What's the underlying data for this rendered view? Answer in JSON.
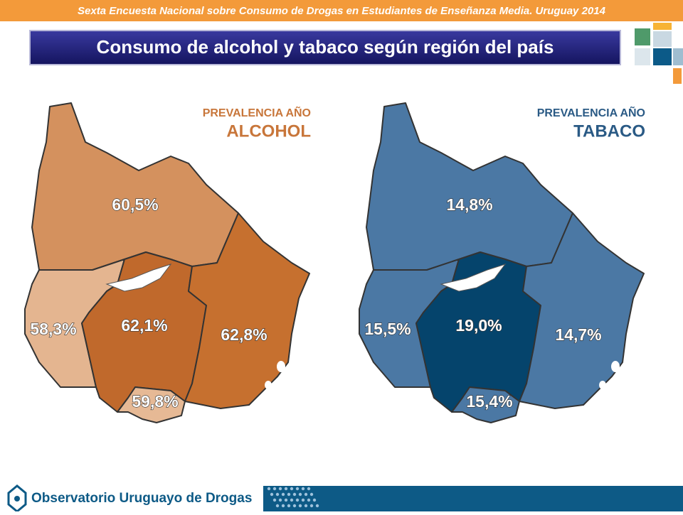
{
  "header": {
    "banner": "Sexta Encuesta Nacional sobre Consumo de Drogas en Estudiantes de Enseñanza Media. Uruguay 2014",
    "title": "Consumo de alcohol y tabaco según región del país"
  },
  "maps": [
    {
      "heading_line1": "PREVALENCIA AÑO",
      "heading_line2": "ALCOHOL",
      "heading_color": "#c8763a",
      "regions": [
        {
          "name": "norte",
          "label": "60,5%",
          "color": "#d4915e"
        },
        {
          "name": "oeste",
          "label": "58,3%",
          "color": "#e4b590"
        },
        {
          "name": "centro",
          "label": "62,1%",
          "color": "#c0692c"
        },
        {
          "name": "este",
          "label": "62,8%",
          "color": "#c6702f"
        },
        {
          "name": "sur",
          "label": "59,8%",
          "color": "#e6b995"
        }
      ]
    },
    {
      "heading_line1": "PREVALENCIA AÑO",
      "heading_line2": "TABACO",
      "heading_color": "#2a5a85",
      "regions": [
        {
          "name": "norte",
          "label": "14,8%",
          "color": "#4b78a4"
        },
        {
          "name": "oeste",
          "label": "15,5%",
          "color": "#4b78a4"
        },
        {
          "name": "centro",
          "label": "19,0%",
          "color": "#05446c"
        },
        {
          "name": "este",
          "label": "14,7%",
          "color": "#4b78a4"
        },
        {
          "name": "sur",
          "label": "15,4%",
          "color": "#4b78a4"
        }
      ]
    }
  ],
  "footer": {
    "organization": "Observatorio Uruguayo de Drogas"
  }
}
